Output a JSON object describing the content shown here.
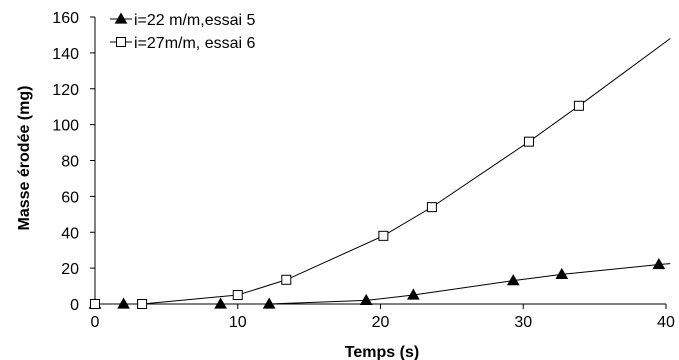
{
  "chart_data": {
    "type": "line",
    "title": "",
    "xlabel": "Temps (s)",
    "ylabel": "Masse érodée (mg)",
    "xlim": [
      0,
      40
    ],
    "ylim": [
      0,
      160
    ],
    "xticks": [
      0,
      10,
      20,
      30,
      40
    ],
    "yticks": [
      0,
      20,
      40,
      60,
      80,
      100,
      120,
      140,
      160
    ],
    "grid": false,
    "legend_position": "top-left",
    "series": [
      {
        "name": "i=22 m/m,essai 5",
        "marker": "filled-triangle",
        "color": "#000000",
        "line_extends_to": [
          40.3,
          22.5
        ],
        "points": [
          [
            0,
            0
          ],
          [
            2,
            0
          ],
          [
            8.8,
            0
          ],
          [
            12.2,
            0
          ],
          [
            19,
            2
          ],
          [
            22.3,
            5
          ],
          [
            29.3,
            13
          ],
          [
            32.7,
            16.5
          ],
          [
            39.5,
            22
          ]
        ]
      },
      {
        "name": "i=27m/m, essai 6",
        "marker": "open-square",
        "color": "#000000",
        "line_extends_to": [
          40.3,
          148
        ],
        "points": [
          [
            0,
            0
          ],
          [
            3.3,
            0
          ],
          [
            10,
            5
          ],
          [
            13.4,
            13.5
          ],
          [
            20.2,
            38
          ],
          [
            23.6,
            54
          ],
          [
            30.4,
            90.5
          ],
          [
            33.9,
            110.5
          ]
        ]
      }
    ]
  }
}
